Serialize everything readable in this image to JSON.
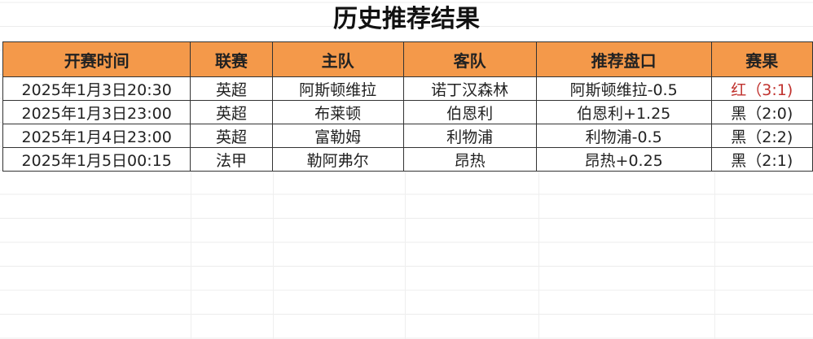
{
  "title": "历史推荐结果",
  "headers": [
    "开赛时间",
    "联赛",
    "主队",
    "客队",
    "推荐盘口",
    "赛果"
  ],
  "rows": [
    [
      "2025年1月3日20:30",
      "英超",
      "阿斯顿维拉",
      "诺丁汉森林",
      "阿斯顿维拉-0.5",
      "红（3:1)"
    ],
    [
      "2025年1月3日23:00",
      "英超",
      "布莱顿",
      "伯恩利",
      "伯恩利+1.25",
      "黑（2:0)"
    ],
    [
      "2025年1月4日23:00",
      "英超",
      "富勒姆",
      "利物浦",
      "利物浦-0.5",
      "黑（2:2)"
    ],
    [
      "2025年1月5日00:15",
      "法甲",
      "勒阿弗尔",
      "昂热",
      "昂热+0.25",
      "黑（2:1)"
    ]
  ],
  "colors": {
    "header_bg": "#f4994a",
    "win": "#c0322e",
    "loss": "#222222"
  }
}
